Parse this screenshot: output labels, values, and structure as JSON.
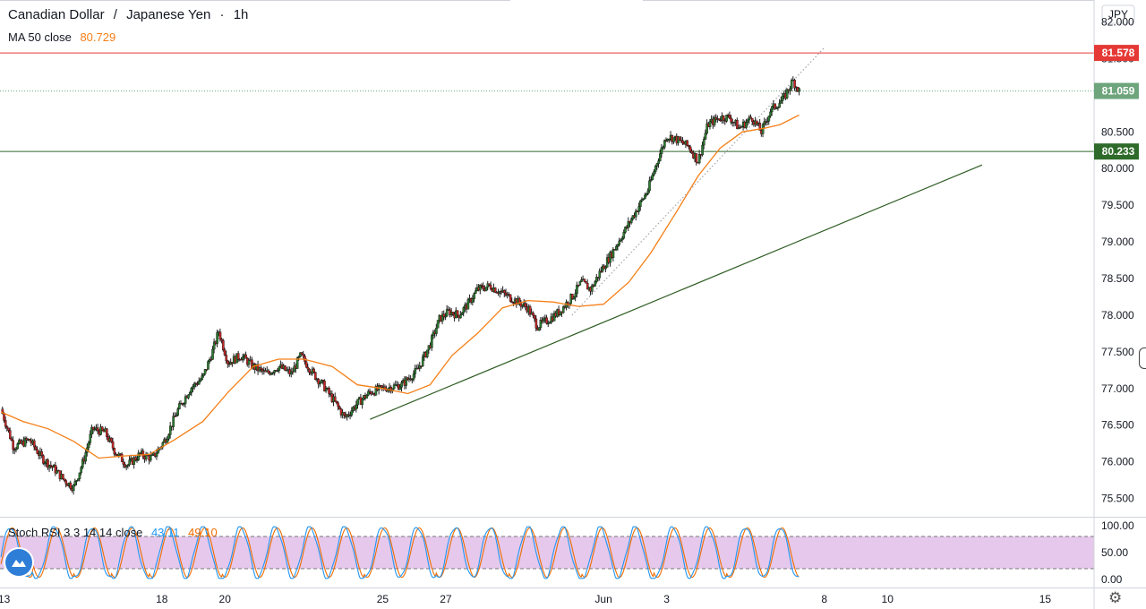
{
  "header": {
    "symbol": "Canadian Dollar",
    "separator": "/",
    "quote": "Japanese Yen",
    "interval_sep": "·",
    "interval": "1h",
    "currency_button": "JPY"
  },
  "indicators": {
    "ma": {
      "label": "MA 50 close",
      "value": "80.729",
      "color": "#f57f17"
    },
    "stoch": {
      "label": "Stoch RSI 3 3 14 14 close",
      "k": "43.11",
      "d": "49.10",
      "k_color": "#2196f3",
      "d_color": "#ef6c00"
    }
  },
  "price_tags": [
    {
      "label": "81.578",
      "value": 81.578,
      "color": "#e53935",
      "line": "solid"
    },
    {
      "label": "81.059",
      "value": 81.059,
      "color": "#6ea57c",
      "line": "dotted"
    },
    {
      "label": "80.233",
      "value": 80.233,
      "color": "#2e6b2a",
      "line": "solid"
    }
  ],
  "chart_data": {
    "type": "candlestick",
    "title": "Canadian Dollar / Japanese Yen · 1h",
    "y_ticks": [
      "82.000",
      "81.500",
      "81.000",
      "80.500",
      "80.000",
      "79.500",
      "79.000",
      "78.500",
      "78.000",
      "77.500",
      "77.000",
      "76.500",
      "76.000",
      "75.500"
    ],
    "y_tick_values": [
      82.0,
      81.5,
      81.0,
      80.5,
      80.0,
      79.5,
      79.0,
      78.5,
      78.0,
      77.5,
      77.0,
      76.5,
      76.0,
      75.5
    ],
    "ylim": [
      75.25,
      82.3
    ],
    "x_ticks": [
      {
        "label": "13",
        "day": 13
      },
      {
        "label": "18",
        "day": 18
      },
      {
        "label": "20",
        "day": 20
      },
      {
        "label": "25",
        "day": 25
      },
      {
        "label": "27",
        "day": 27
      },
      {
        "label": "Jun",
        "day": 32
      },
      {
        "label": "3",
        "day": 34
      },
      {
        "label": "8",
        "day": 39
      },
      {
        "label": "10",
        "day": 41
      },
      {
        "label": "15",
        "day": 46
      }
    ],
    "xlim": [
      12.87,
      47.55
    ],
    "last_data_day": 38.2,
    "close_path": [
      [
        12.9,
        76.72
      ],
      [
        13.3,
        76.2
      ],
      [
        13.8,
        76.3
      ],
      [
        14.2,
        76.05
      ],
      [
        14.6,
        75.9
      ],
      [
        14.9,
        75.75
      ],
      [
        15.2,
        75.65
      ],
      [
        15.5,
        76.0
      ],
      [
        15.8,
        76.45
      ],
      [
        16.2,
        76.4
      ],
      [
        16.5,
        76.15
      ],
      [
        16.9,
        75.95
      ],
      [
        17.3,
        76.1
      ],
      [
        17.7,
        76.05
      ],
      [
        18.1,
        76.3
      ],
      [
        18.5,
        76.7
      ],
      [
        18.9,
        77.0
      ],
      [
        19.3,
        77.15
      ],
      [
        19.6,
        77.5
      ],
      [
        19.8,
        77.78
      ],
      [
        20.1,
        77.35
      ],
      [
        20.5,
        77.45
      ],
      [
        20.9,
        77.3
      ],
      [
        21.3,
        77.2
      ],
      [
        21.7,
        77.3
      ],
      [
        22.1,
        77.2
      ],
      [
        22.4,
        77.45
      ],
      [
        22.8,
        77.2
      ],
      [
        23.1,
        77.05
      ],
      [
        23.5,
        76.8
      ],
      [
        23.8,
        76.6
      ],
      [
        24.2,
        76.8
      ],
      [
        24.6,
        76.95
      ],
      [
        25.0,
        77.0
      ],
      [
        25.6,
        77.05
      ],
      [
        26.1,
        77.25
      ],
      [
        26.5,
        77.6
      ],
      [
        26.8,
        77.95
      ],
      [
        27.1,
        78.05
      ],
      [
        27.4,
        78.0
      ],
      [
        27.7,
        78.15
      ],
      [
        28.0,
        78.35
      ],
      [
        28.4,
        78.4
      ],
      [
        28.8,
        78.3
      ],
      [
        29.2,
        78.2
      ],
      [
        29.6,
        78.1
      ],
      [
        29.9,
        77.85
      ],
      [
        30.3,
        77.95
      ],
      [
        30.6,
        78.05
      ],
      [
        31.0,
        78.25
      ],
      [
        31.3,
        78.45
      ],
      [
        31.6,
        78.35
      ],
      [
        31.9,
        78.6
      ],
      [
        32.2,
        78.8
      ],
      [
        32.6,
        79.1
      ],
      [
        33.0,
        79.4
      ],
      [
        33.4,
        79.7
      ],
      [
        33.7,
        80.1
      ],
      [
        34.0,
        80.45
      ],
      [
        34.3,
        80.4
      ],
      [
        34.7,
        80.3
      ],
      [
        35.0,
        80.1
      ],
      [
        35.3,
        80.6
      ],
      [
        35.7,
        80.7
      ],
      [
        36.0,
        80.7
      ],
      [
        36.3,
        80.55
      ],
      [
        36.7,
        80.7
      ],
      [
        37.0,
        80.5
      ],
      [
        37.3,
        80.8
      ],
      [
        37.7,
        80.95
      ],
      [
        38.0,
        81.2
      ],
      [
        38.2,
        81.06
      ]
    ],
    "ma_path": [
      [
        12.9,
        76.68
      ],
      [
        13.6,
        76.55
      ],
      [
        14.4,
        76.45
      ],
      [
        15.2,
        76.28
      ],
      [
        16.0,
        76.05
      ],
      [
        16.8,
        76.08
      ],
      [
        17.6,
        76.1
      ],
      [
        18.4,
        76.3
      ],
      [
        19.3,
        76.55
      ],
      [
        20.1,
        76.95
      ],
      [
        20.9,
        77.3
      ],
      [
        21.7,
        77.4
      ],
      [
        22.5,
        77.4
      ],
      [
        23.4,
        77.3
      ],
      [
        24.2,
        77.05
      ],
      [
        25.0,
        77.0
      ],
      [
        25.8,
        76.93
      ],
      [
        26.5,
        77.05
      ],
      [
        27.2,
        77.45
      ],
      [
        28.0,
        77.75
      ],
      [
        28.8,
        78.1
      ],
      [
        29.6,
        78.2
      ],
      [
        30.4,
        78.18
      ],
      [
        31.2,
        78.12
      ],
      [
        32.0,
        78.15
      ],
      [
        32.8,
        78.45
      ],
      [
        33.5,
        78.85
      ],
      [
        34.3,
        79.4
      ],
      [
        35.0,
        79.9
      ],
      [
        35.7,
        80.28
      ],
      [
        36.4,
        80.5
      ],
      [
        37.1,
        80.55
      ],
      [
        37.6,
        80.6
      ],
      [
        38.2,
        80.73
      ]
    ],
    "trendlines": [
      {
        "name": "support",
        "from": [
          24.6,
          76.58
        ],
        "to": [
          44.0,
          80.05
        ],
        "color": "#2e5d24",
        "style": "solid"
      },
      {
        "name": "channel",
        "from": [
          31.0,
          78.0
        ],
        "to": [
          39.0,
          81.65
        ],
        "color": "#a0a4ab",
        "style": "dotted"
      }
    ]
  },
  "stoch_chart": {
    "y_ticks": [
      "100.00",
      "50.00",
      "0.00"
    ],
    "y_tick_values": [
      100,
      50,
      0
    ],
    "band": [
      20,
      80
    ],
    "band_color": "#e1bee7",
    "cycle_peaks_days": [
      13.2,
      14.6,
      15.8,
      17.0,
      18.2,
      19.3,
      20.5,
      21.6,
      22.7,
      23.8,
      25.0,
      26.1,
      27.3,
      28.4,
      29.6,
      30.7,
      31.9,
      33.0,
      34.2,
      35.3,
      36.5,
      37.6
    ]
  }
}
